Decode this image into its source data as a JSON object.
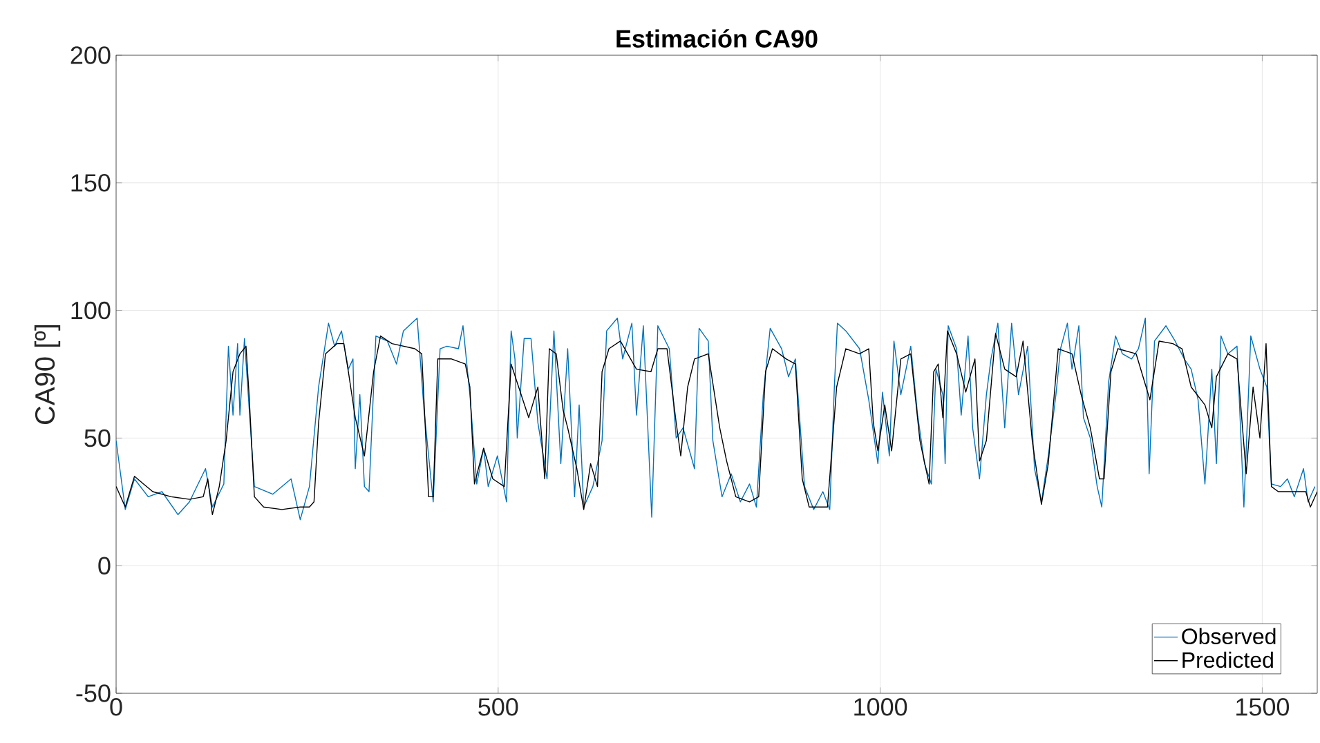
{
  "chart_data": {
    "type": "line",
    "title": "Estimación CA90",
    "ylabel": "CA90 [º]",
    "xlim": [
      0,
      1572
    ],
    "ylim": [
      -50,
      200
    ],
    "xticks": [
      0,
      500,
      1000,
      1500
    ],
    "yticks": [
      -50,
      0,
      50,
      100,
      150,
      200
    ],
    "grid": true,
    "legend": "bottom right",
    "series": [
      {
        "name": "Observed",
        "color": "#0072bd",
        "x": [
          0,
          12,
          24,
          42,
          60,
          81,
          96,
          117,
          126,
          141,
          147,
          153,
          159,
          162,
          168,
          181,
          205,
          229,
          241,
          253,
          265,
          278,
          286,
          295,
          304,
          310,
          313,
          319,
          325,
          331,
          340,
          355,
          367,
          376,
          394,
          403,
          415,
          424,
          433,
          448,
          454,
          463,
          472,
          481,
          487,
          499,
          511,
          517,
          522,
          525,
          534,
          543,
          552,
          564,
          573,
          582,
          591,
          600,
          606,
          612,
          624,
          636,
          642,
          656,
          663,
          675,
          681,
          690,
          701,
          709,
          724,
          733,
          742,
          757,
          763,
          775,
          781,
          793,
          805,
          817,
          829,
          838,
          847,
          856,
          871,
          880,
          889,
          901,
          913,
          925,
          934,
          940,
          944,
          955,
          973,
          985,
          997,
          1003,
          1012,
          1018,
          1027,
          1040,
          1049,
          1058,
          1067,
          1073,
          1082,
          1085,
          1089,
          1100,
          1106,
          1115,
          1121,
          1130,
          1139,
          1145,
          1154,
          1163,
          1172,
          1181,
          1193,
          1202,
          1211,
          1220,
          1230,
          1236,
          1245,
          1251,
          1260,
          1266,
          1275,
          1284,
          1290,
          1299,
          1308,
          1317,
          1329,
          1338,
          1347,
          1352,
          1359,
          1374,
          1386,
          1398,
          1407,
          1416,
          1425,
          1434,
          1440,
          1446,
          1455,
          1467,
          1476,
          1485,
          1497,
          1506,
          1512,
          1524,
          1533,
          1542,
          1554,
          1560,
          1569
        ],
        "values": [
          49,
          22,
          34,
          27,
          29,
          20,
          25,
          38,
          23,
          32,
          86,
          59,
          87,
          59,
          89,
          31,
          28,
          34,
          18,
          31,
          70,
          95,
          86,
          92,
          77,
          81,
          38,
          67,
          31,
          29,
          90,
          88,
          79,
          92,
          97,
          61,
          25,
          85,
          86,
          85,
          94,
          67,
          32,
          46,
          31,
          43,
          25,
          92,
          81,
          50,
          89,
          89,
          56,
          34,
          92,
          40,
          85,
          27,
          63,
          23,
          31,
          49,
          92,
          97,
          81,
          95,
          59,
          94,
          19,
          94,
          85,
          50,
          54,
          38,
          93,
          88,
          49,
          27,
          36,
          25,
          32,
          23,
          67,
          93,
          85,
          74,
          81,
          31,
          22,
          29,
          22,
          70,
          95,
          92,
          85,
          65,
          40,
          68,
          43,
          88,
          67,
          86,
          59,
          40,
          32,
          77,
          67,
          40,
          94,
          85,
          59,
          90,
          54,
          34,
          67,
          81,
          95,
          54,
          95,
          67,
          86,
          38,
          25,
          43,
          67,
          85,
          95,
          77,
          94,
          58,
          50,
          31,
          23,
          72,
          90,
          83,
          81,
          85,
          97,
          36,
          88,
          94,
          88,
          81,
          77,
          65,
          32,
          77,
          40,
          90,
          83,
          86,
          23,
          90,
          77,
          70,
          32,
          31,
          34,
          27,
          38,
          25,
          31
        ]
      },
      {
        "name": "Predicted",
        "color": "#000000",
        "x": [
          0,
          12,
          24,
          36,
          48,
          72,
          96,
          114,
          120,
          126,
          135,
          144,
          153,
          162,
          170,
          174,
          181,
          193,
          217,
          241,
          253,
          259,
          265,
          274,
          289,
          298,
          304,
          313,
          325,
          337,
          346,
          361,
          391,
          400,
          409,
          415,
          421,
          439,
          457,
          463,
          469,
          481,
          493,
          508,
          517,
          540,
          552,
          561,
          567,
          576,
          585,
          591,
          603,
          612,
          621,
          630,
          636,
          645,
          660,
          681,
          700,
          709,
          721,
          733,
          739,
          748,
          757,
          775,
          790,
          799,
          811,
          829,
          841,
          850,
          859,
          877,
          889,
          898,
          907,
          931,
          943,
          955,
          973,
          985,
          991,
          997,
          1006,
          1015,
          1027,
          1040,
          1052,
          1064,
          1070,
          1076,
          1082,
          1088,
          1100,
          1112,
          1124,
          1130,
          1139,
          1151,
          1163,
          1178,
          1187,
          1199,
          1211,
          1220,
          1233,
          1251,
          1263,
          1275,
          1287,
          1293,
          1302,
          1311,
          1335,
          1353,
          1365,
          1383,
          1395,
          1407,
          1425,
          1434,
          1440,
          1455,
          1467,
          1479,
          1488,
          1497,
          1505,
          1512,
          1521,
          1545,
          1557,
          1563,
          1572
        ],
        "values": [
          31,
          23,
          35,
          32,
          29,
          27,
          26,
          27,
          34,
          20,
          31,
          49,
          76,
          83,
          86,
          67,
          27,
          23,
          22,
          23,
          23,
          25,
          56,
          83,
          87,
          87,
          76,
          58,
          43,
          76,
          90,
          87,
          85,
          83,
          27,
          27,
          81,
          81,
          79,
          70,
          32,
          46,
          34,
          31,
          79,
          58,
          70,
          34,
          85,
          83,
          61,
          54,
          38,
          22,
          40,
          31,
          76,
          85,
          88,
          77,
          76,
          85,
          85,
          56,
          43,
          70,
          81,
          83,
          54,
          41,
          27,
          25,
          27,
          76,
          85,
          81,
          79,
          34,
          23,
          23,
          70,
          85,
          83,
          85,
          56,
          45,
          63,
          45,
          81,
          83,
          49,
          32,
          76,
          79,
          58,
          92,
          83,
          68,
          81,
          41,
          49,
          91,
          77,
          74,
          88,
          49,
          24,
          40,
          85,
          83,
          67,
          54,
          34,
          34,
          76,
          85,
          83,
          65,
          88,
          87,
          85,
          70,
          63,
          54,
          74,
          83,
          81,
          36,
          70,
          50,
          87,
          31,
          29,
          29,
          29,
          23,
          29
        ]
      }
    ]
  }
}
